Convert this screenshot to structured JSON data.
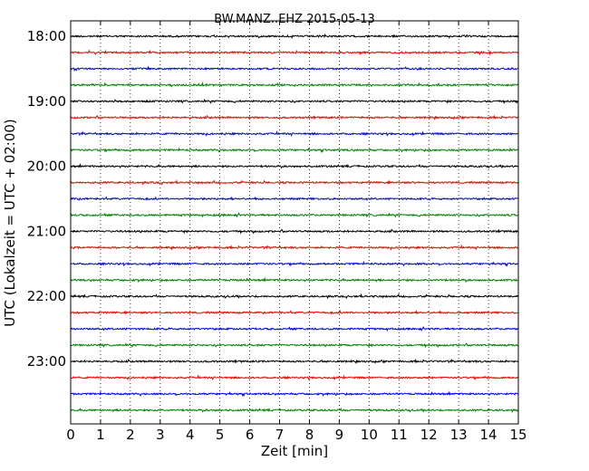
{
  "chart_data": {
    "type": "line",
    "title": "BW.MANZ..EHZ 2015-05-13",
    "xlabel": "Zeit  [min]",
    "ylabel": "UTC (Lokalzeit = UTC + 02:00)",
    "xlim": [
      0,
      15
    ],
    "x_ticks": [
      "0",
      "1",
      "2",
      "3",
      "4",
      "5",
      "6",
      "7",
      "8",
      "9",
      "10",
      "11",
      "12",
      "13",
      "14",
      "15"
    ],
    "y_ticks": [
      "18:00",
      "19:00",
      "20:00",
      "21:00",
      "22:00",
      "23:00"
    ],
    "trace_interval_min": 15,
    "trace_start": "18:00",
    "trace_count": 24,
    "trace_colors": [
      "#000000",
      "#ff0000",
      "#0000ff",
      "#008000"
    ],
    "vertical_grid": "dotted"
  }
}
